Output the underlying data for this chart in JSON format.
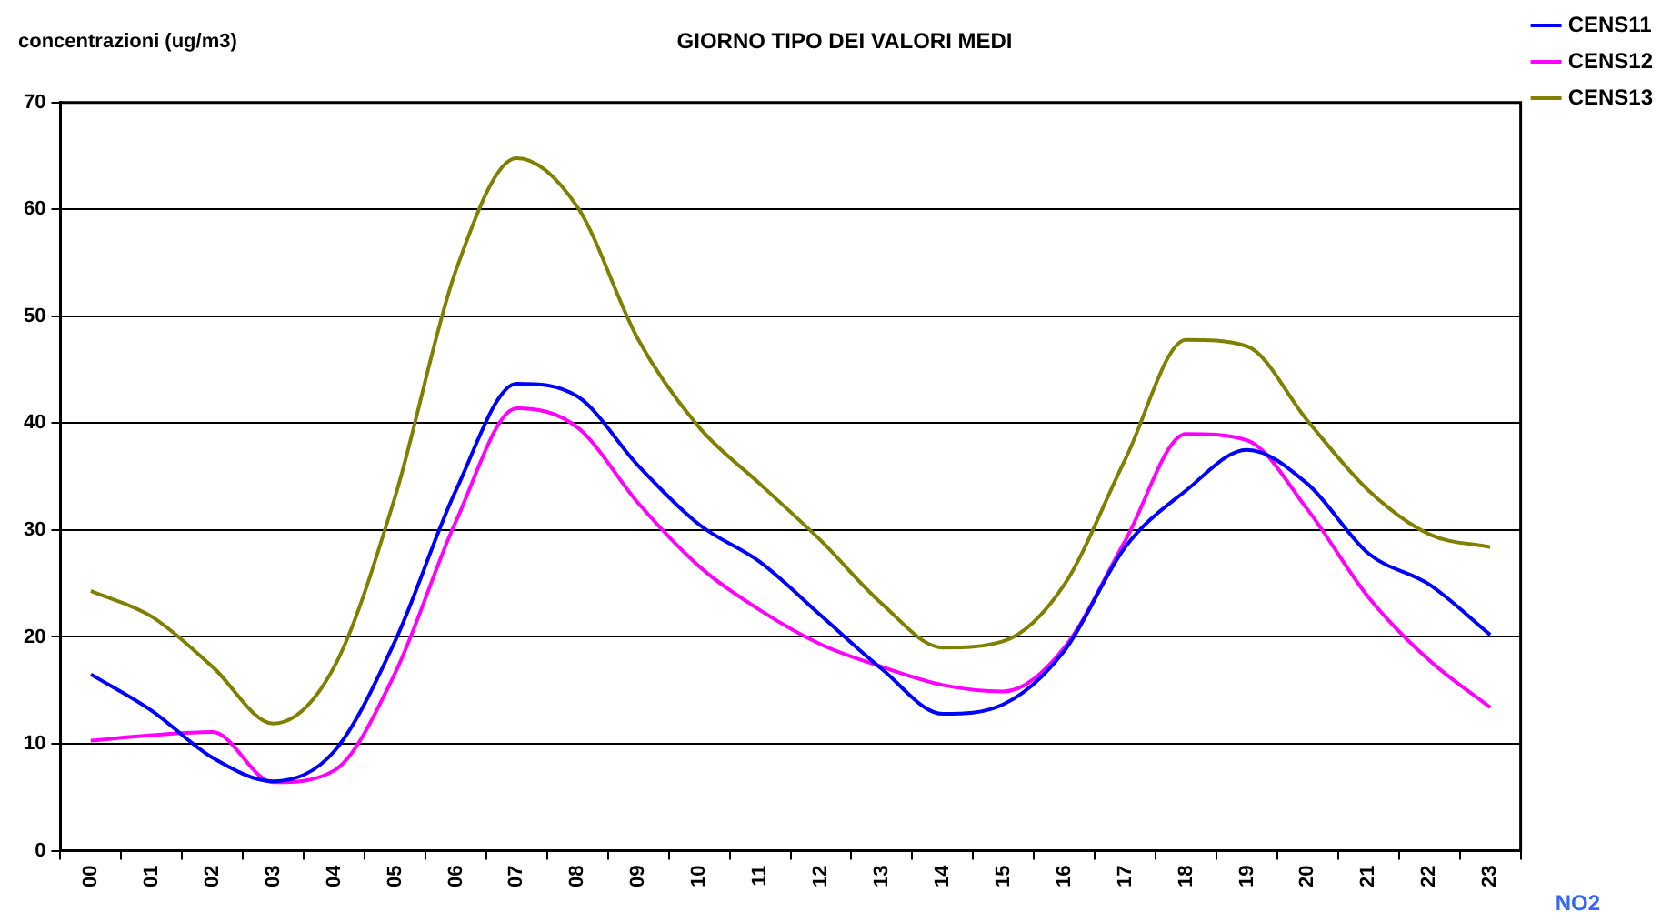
{
  "chart_data": {
    "type": "line",
    "title": "GIORNO TIPO DEI VALORI MEDI",
    "ylabel": "concentrazioni (ug/m3)",
    "annotations": [
      "NO2"
    ],
    "categories": [
      "00",
      "01",
      "02",
      "03",
      "04",
      "05",
      "06",
      "07",
      "08",
      "09",
      "10",
      "11",
      "12",
      "13",
      "14",
      "15",
      "16",
      "17",
      "18",
      "19",
      "20",
      "21",
      "22",
      "23"
    ],
    "series": [
      {
        "name": "CENS11",
        "color": "#0000ff",
        "values": [
          16.5,
          13.1,
          8.7,
          6.5,
          9.3,
          19.6,
          33.7,
          43.7,
          42.5,
          36,
          30.5,
          27,
          22,
          17,
          12.8,
          13.7,
          18.7,
          28.4,
          33.7,
          37.5,
          34.3,
          27.8,
          24.9,
          20.2
        ]
      },
      {
        "name": "CENS12",
        "color": "#ff00ff",
        "values": [
          10.3,
          10.8,
          11.1,
          6.4,
          7.5,
          16.6,
          30.8,
          41.4,
          39.6,
          32.5,
          26.6,
          22.5,
          19.3,
          17.2,
          15.5,
          14.9,
          19,
          29,
          39,
          38.4,
          31.9,
          23.7,
          17.8,
          13.4
        ]
      },
      {
        "name": "CENS13",
        "color": "#808000",
        "values": [
          24.3,
          21.9,
          17.2,
          11.9,
          17.2,
          33.1,
          54.3,
          64.8,
          60.2,
          47.8,
          39.6,
          34.3,
          29,
          23.1,
          19,
          19.6,
          24.9,
          36.6,
          47.8,
          47.2,
          40.2,
          33.7,
          29.6,
          28.4
        ]
      }
    ],
    "ylim": [
      0,
      70
    ],
    "yticks": [
      0,
      10,
      20,
      30,
      40,
      50,
      60,
      70
    ],
    "grid": "y",
    "legend": "top right",
    "marker": "none",
    "line_style": "solid"
  }
}
